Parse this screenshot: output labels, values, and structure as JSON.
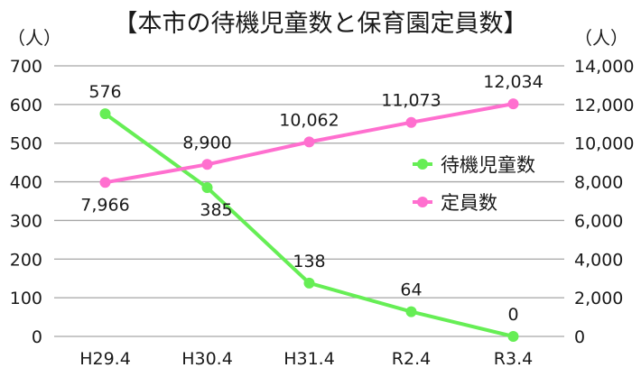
{
  "chart_data": {
    "type": "line",
    "title": "【本市の待機児童数と保育園定員数】",
    "categories": [
      "H29.4",
      "H30.4",
      "H31.4",
      "R2.4",
      "R3.4"
    ],
    "series": [
      {
        "name": "待機児童数",
        "axis": "left",
        "color": "#66ee55",
        "values": [
          576,
          385,
          138,
          64,
          0
        ],
        "labels": [
          "576",
          "385",
          "138",
          "64",
          "0"
        ]
      },
      {
        "name": "定員数",
        "axis": "right",
        "color": "#ff6fcf",
        "values": [
          7966,
          8900,
          10062,
          11073,
          12034
        ],
        "labels": [
          "7,966",
          "8,900",
          "10,062",
          "11,073",
          "12,034"
        ]
      }
    ],
    "y_left": {
      "label": "（人）",
      "ylim": [
        0,
        700
      ],
      "ticks": [
        "0",
        "100",
        "200",
        "300",
        "400",
        "500",
        "600",
        "700"
      ]
    },
    "y_right": {
      "label": "（人）",
      "ylim": [
        0,
        14000
      ],
      "ticks": [
        "0",
        "2,000",
        "4,000",
        "6,000",
        "8,000",
        "10,000",
        "12,000",
        "14,000"
      ]
    },
    "grid": true,
    "legend_position": "inside-right"
  },
  "title": "【本市の待機児童数と保育園定員数】",
  "unit_left": "（人）",
  "unit_right": "（人）",
  "legend": [
    {
      "label": "待機児童数",
      "color": "#66ee55"
    },
    {
      "label": "定員数",
      "color": "#ff6fcf"
    }
  ]
}
